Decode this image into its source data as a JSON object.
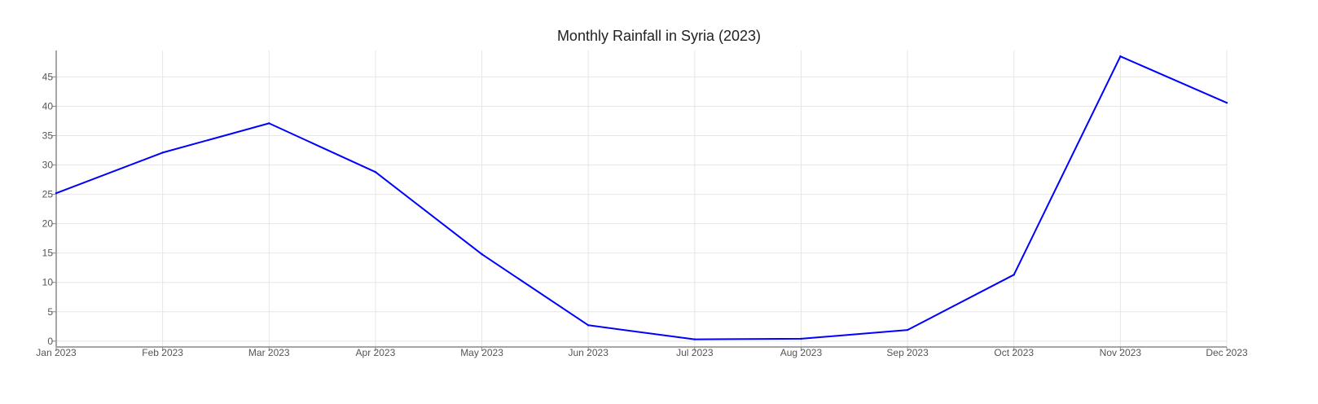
{
  "chart_data": {
    "type": "line",
    "title": "Monthly Rainfall in Syria (2023)",
    "xlabel": "",
    "ylabel": "",
    "categories": [
      "Jan 2023",
      "Feb 2023",
      "Mar 2023",
      "Apr 2023",
      "May 2023",
      "Jun 2023",
      "Jul 2023",
      "Aug 2023",
      "Sep 2023",
      "Oct 2023",
      "Nov 2023",
      "Dec 2023"
    ],
    "series": [
      {
        "values": [
          25.2,
          32.1,
          37.1,
          28.8,
          14.8,
          2.7,
          0.3,
          0.4,
          1.9,
          11.3,
          48.5,
          40.6
        ]
      }
    ],
    "y_ticks": [
      "0",
      "5",
      "10",
      "15",
      "20",
      "25",
      "30",
      "35",
      "40",
      "45"
    ],
    "ylim": [
      -1,
      49.5
    ],
    "grid": true,
    "legend": "none",
    "colors": {
      "line": "#0000ff",
      "grid": "#e6e6e6",
      "axis": "#888888"
    }
  }
}
